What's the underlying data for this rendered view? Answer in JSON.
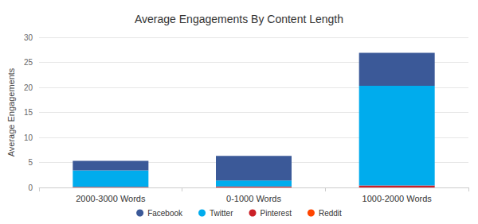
{
  "chart_data": {
    "type": "bar",
    "title": "Average Engagements By Content Length",
    "y_label": "Average Engagements",
    "categories": [
      "2000-3000 Words",
      "0-1000 Words",
      "1000-2000 Words"
    ],
    "series": [
      {
        "name": "Facebook",
        "color": "#3b5998",
        "values": [
          1.9,
          4.9,
          6.6
        ]
      },
      {
        "name": "Twitter",
        "color": "#00aced",
        "values": [
          3.3,
          1.2,
          19.9
        ]
      },
      {
        "name": "Pinterest",
        "color": "#cb2027",
        "values": [
          0.1,
          0.2,
          0.4
        ]
      },
      {
        "name": "Reddit",
        "color": "#ff4500",
        "values": [
          0,
          0,
          0
        ]
      }
    ],
    "ylim": [
      0,
      30
    ],
    "yticks": [
      0,
      5,
      10,
      15,
      20,
      25,
      30
    ],
    "stacked": true,
    "grid": true,
    "legend": "bottom"
  }
}
